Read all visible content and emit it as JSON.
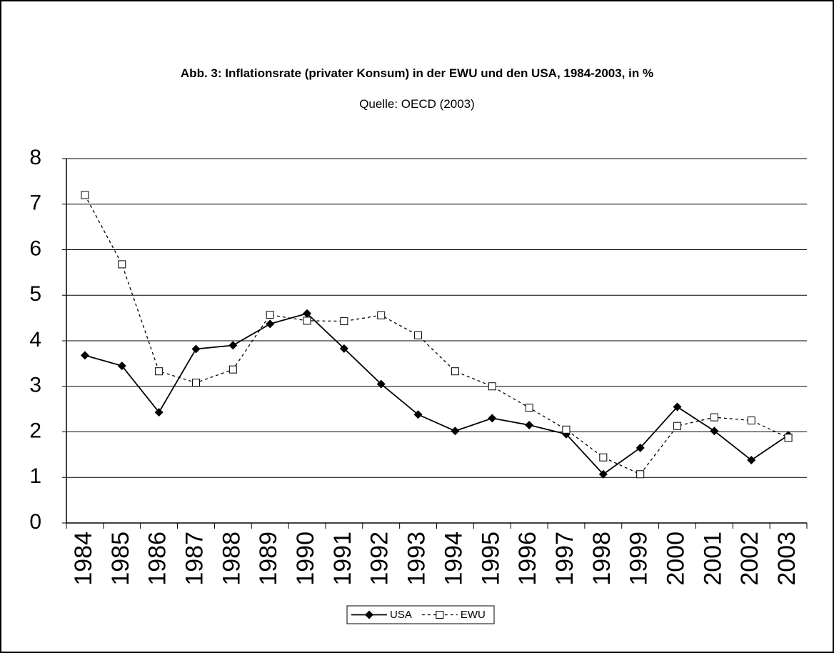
{
  "chart_data": {
    "type": "line",
    "title": "Abb. 3: Inflationsrate (privater Konsum) in der EWU und den USA, 1984-2003, in %",
    "subtitle": "Quelle: OECD (2003)",
    "categories": [
      "1984",
      "1985",
      "1986",
      "1987",
      "1988",
      "1989",
      "1990",
      "1991",
      "1992",
      "1993",
      "1994",
      "1995",
      "1996",
      "1997",
      "1998",
      "1999",
      "2000",
      "2001",
      "2002",
      "2003"
    ],
    "series": [
      {
        "name": "USA",
        "color": "#000000",
        "marker": "diamond",
        "dashed": false,
        "values": [
          3.68,
          3.45,
          2.43,
          3.82,
          3.9,
          4.37,
          4.6,
          3.83,
          3.05,
          2.38,
          2.02,
          2.3,
          2.15,
          1.95,
          1.07,
          1.65,
          2.55,
          2.02,
          1.38,
          1.93
        ]
      },
      {
        "name": "EWU",
        "color": "#000000",
        "marker": "square",
        "dashed": true,
        "values": [
          7.2,
          5.68,
          3.33,
          3.08,
          3.37,
          4.57,
          4.44,
          4.43,
          4.56,
          4.12,
          3.33,
          3.0,
          2.53,
          2.05,
          1.44,
          1.07,
          2.13,
          2.32,
          2.25,
          1.87
        ]
      }
    ],
    "ylim": [
      0,
      8
    ],
    "yticks": [
      0,
      1,
      2,
      3,
      4,
      5,
      6,
      7,
      8
    ],
    "grid": true,
    "legend": "bottom"
  }
}
